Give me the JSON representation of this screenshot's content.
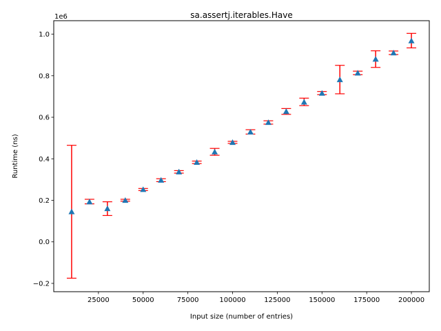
{
  "chart_data": {
    "type": "scatter",
    "title": "sa.assertj.iterables.Have",
    "xlabel": "Input size (number of entries)",
    "ylabel": "Runtime (ns)",
    "y_offset_label": "1e6",
    "xlim": [
      0,
      210000
    ],
    "ylim": [
      -0.24,
      1.065
    ],
    "y_scale": 1000000,
    "x_ticks": [
      25000,
      50000,
      75000,
      100000,
      125000,
      150000,
      175000,
      200000
    ],
    "y_ticks": [
      -0.2,
      0.0,
      0.2,
      0.4,
      0.6,
      0.8,
      1.0
    ],
    "x_tick_labels": [
      "25000",
      "50000",
      "75000",
      "100000",
      "125000",
      "150000",
      "175000",
      "200000"
    ],
    "y_tick_labels": [
      "−0.2",
      "0.0",
      "0.2",
      "0.4",
      "0.6",
      "0.8",
      "1.0"
    ],
    "grid": false,
    "marker": "triangle",
    "marker_color": "#1f77b4",
    "errorbar_color": "#ff0000",
    "points": [
      {
        "x": 10000,
        "y": 0.145,
        "lo": -0.175,
        "hi": 0.465
      },
      {
        "x": 20000,
        "y": 0.193,
        "lo": 0.183,
        "hi": 0.205
      },
      {
        "x": 30000,
        "y": 0.16,
        "lo": 0.127,
        "hi": 0.193
      },
      {
        "x": 40000,
        "y": 0.2,
        "lo": 0.196,
        "hi": 0.205
      },
      {
        "x": 50000,
        "y": 0.252,
        "lo": 0.247,
        "hi": 0.257
      },
      {
        "x": 60000,
        "y": 0.297,
        "lo": 0.29,
        "hi": 0.304
      },
      {
        "x": 70000,
        "y": 0.337,
        "lo": 0.331,
        "hi": 0.343
      },
      {
        "x": 80000,
        "y": 0.383,
        "lo": 0.377,
        "hi": 0.389
      },
      {
        "x": 90000,
        "y": 0.433,
        "lo": 0.417,
        "hi": 0.45
      },
      {
        "x": 100000,
        "y": 0.479,
        "lo": 0.474,
        "hi": 0.484
      },
      {
        "x": 110000,
        "y": 0.529,
        "lo": 0.519,
        "hi": 0.54
      },
      {
        "x": 120000,
        "y": 0.575,
        "lo": 0.567,
        "hi": 0.583
      },
      {
        "x": 130000,
        "y": 0.628,
        "lo": 0.614,
        "hi": 0.642
      },
      {
        "x": 140000,
        "y": 0.673,
        "lo": 0.656,
        "hi": 0.692
      },
      {
        "x": 150000,
        "y": 0.716,
        "lo": 0.709,
        "hi": 0.724
      },
      {
        "x": 160000,
        "y": 0.781,
        "lo": 0.713,
        "hi": 0.85
      },
      {
        "x": 170000,
        "y": 0.813,
        "lo": 0.805,
        "hi": 0.822
      },
      {
        "x": 180000,
        "y": 0.88,
        "lo": 0.84,
        "hi": 0.92
      },
      {
        "x": 190000,
        "y": 0.91,
        "lo": 0.902,
        "hi": 0.919
      },
      {
        "x": 200000,
        "y": 0.968,
        "lo": 0.934,
        "hi": 1.004
      }
    ]
  }
}
